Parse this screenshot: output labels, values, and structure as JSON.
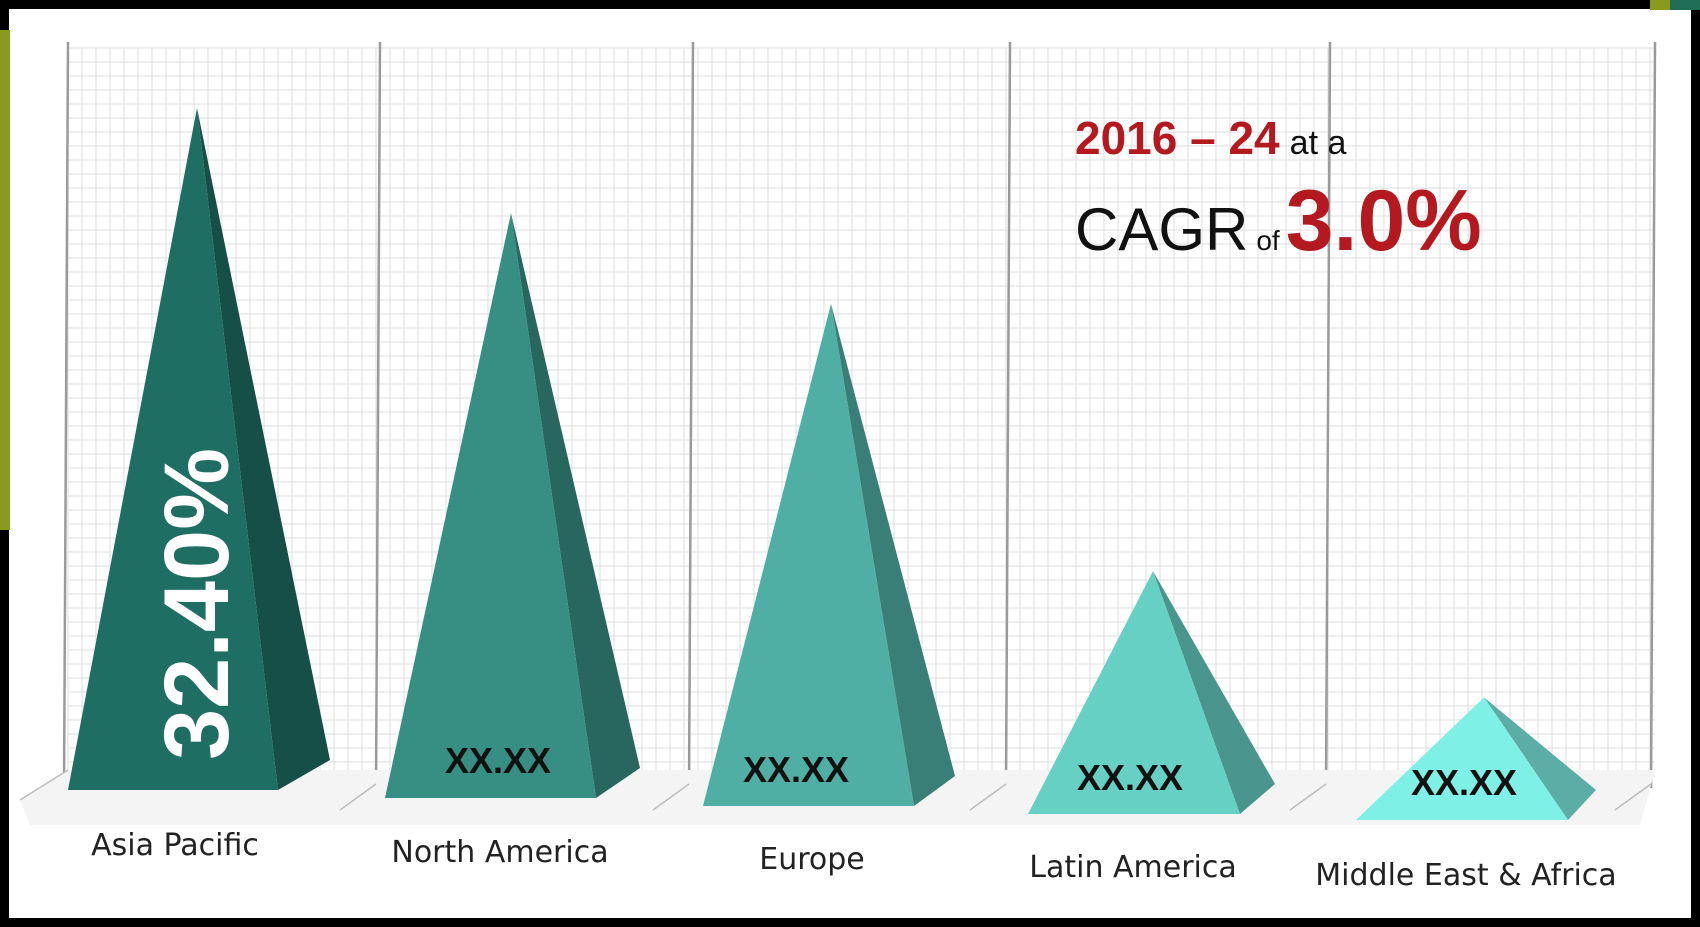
{
  "headline": {
    "period": "2016 – 24",
    "period_suffix": "at a",
    "metric": "CAGR",
    "connector": "of",
    "rate": "3.0%"
  },
  "colors": {
    "accent_red": "#b3191f",
    "teal_dark": "#1f6e63",
    "teal_light": "#7ff0e6"
  },
  "chart_data": {
    "type": "bar",
    "style": "3d-pyramid",
    "categories": [
      "Asia Pacific",
      "North America",
      "Europe",
      "Latin America",
      "Middle East & Africa"
    ],
    "value_labels": [
      "32.40%",
      "XX.XX",
      "XX.XX",
      "XX.XX",
      "XX.XX"
    ],
    "values": [
      32.4,
      27.4,
      23.1,
      10.4,
      4.4
    ],
    "grid": true
  }
}
